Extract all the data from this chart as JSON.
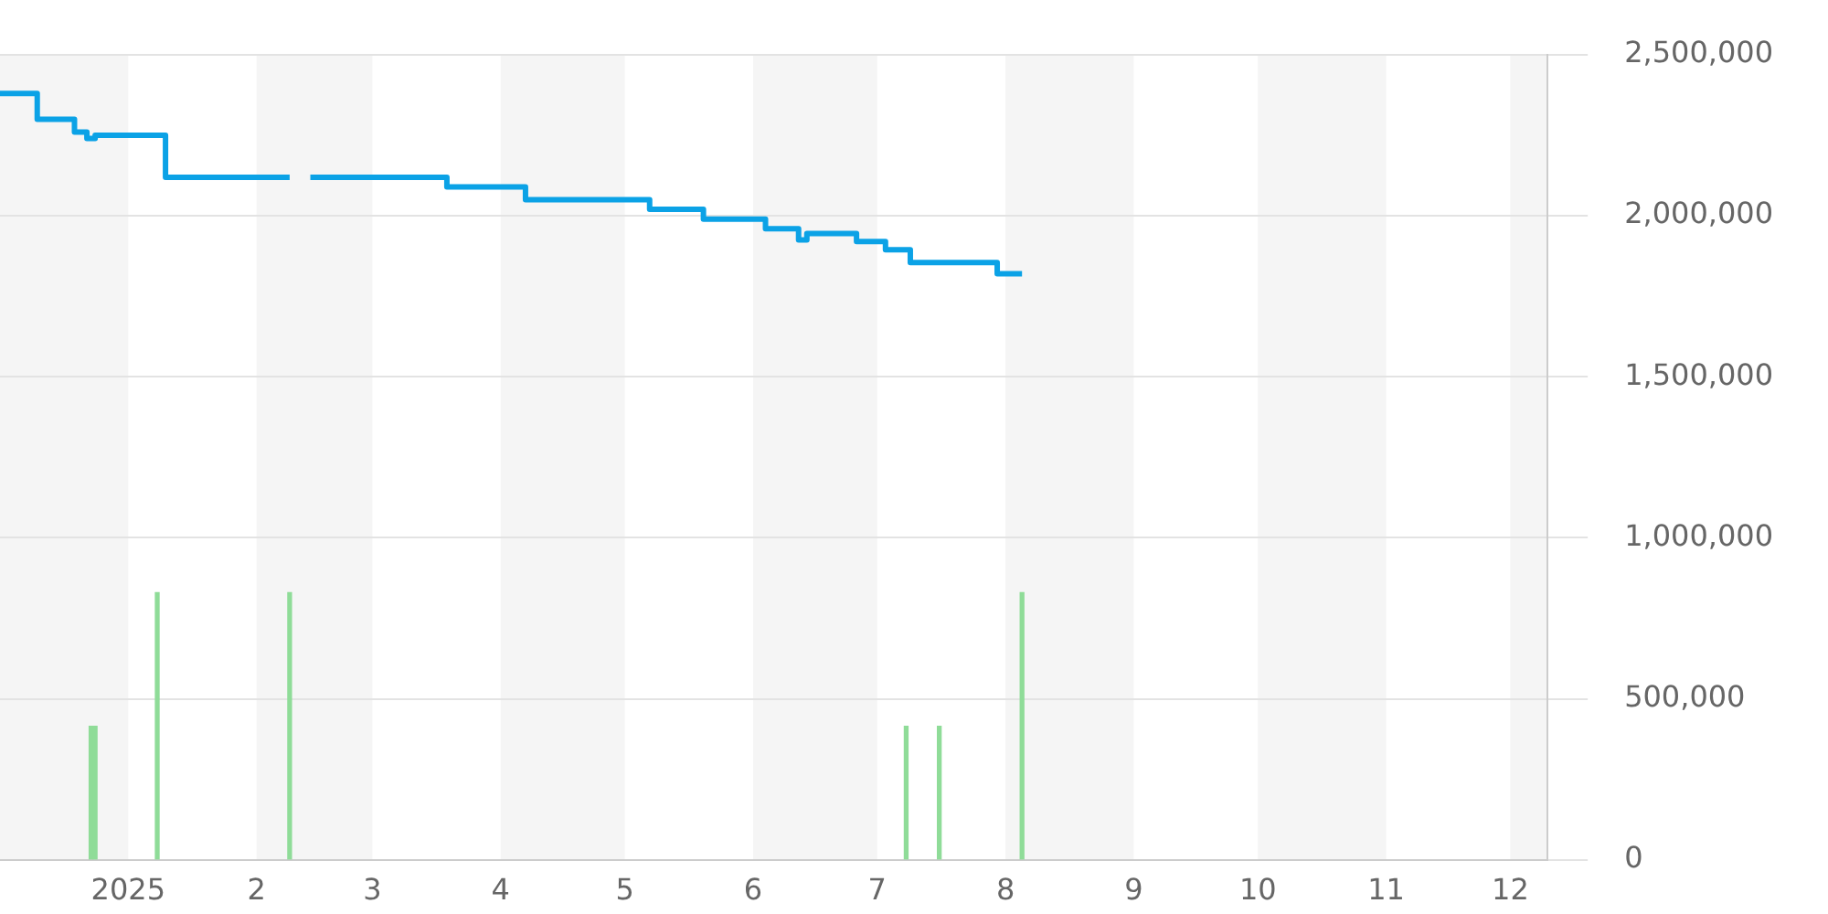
{
  "chart_data": {
    "type": "step",
    "xlim": [
      "2024-12-01",
      "2025-12-10"
    ],
    "xticks": [
      {
        "value": "2025-01-01",
        "label": "2025"
      },
      {
        "value": "2025-02-01",
        "label": "2"
      },
      {
        "value": "2025-03-01",
        "label": "3"
      },
      {
        "value": "2025-04-01",
        "label": "4"
      },
      {
        "value": "2025-05-01",
        "label": "5"
      },
      {
        "value": "2025-06-01",
        "label": "6"
      },
      {
        "value": "2025-07-01",
        "label": "7"
      },
      {
        "value": "2025-08-01",
        "label": "8"
      },
      {
        "value": "2025-09-01",
        "label": "9"
      },
      {
        "value": "2025-10-01",
        "label": "10"
      },
      {
        "value": "2025-11-01",
        "label": "11"
      },
      {
        "value": "2025-12-01",
        "label": "12"
      }
    ],
    "ylim": [
      0,
      2500000
    ],
    "yticks": [
      {
        "value": 0,
        "label": "0"
      },
      {
        "value": 500000,
        "label": "500,000"
      },
      {
        "value": 1000000,
        "label": "1,000,000"
      },
      {
        "value": 1500000,
        "label": "1,500,000"
      },
      {
        "value": 2000000,
        "label": "2,000,000"
      },
      {
        "value": 2500000,
        "label": "2,500,000"
      }
    ],
    "grid": "y",
    "legend": false,
    "bands": [
      {
        "axis": "x",
        "from": "2024-12-01",
        "to": "2025-01-01",
        "color": "#f5f5f5"
      },
      {
        "axis": "x",
        "from": "2025-02-01",
        "to": "2025-03-01",
        "color": "#f5f5f5"
      },
      {
        "axis": "x",
        "from": "2025-04-01",
        "to": "2025-05-01",
        "color": "#f5f5f5"
      },
      {
        "axis": "x",
        "from": "2025-06-01",
        "to": "2025-07-01",
        "color": "#f5f5f5"
      },
      {
        "axis": "x",
        "from": "2025-08-01",
        "to": "2025-09-01",
        "color": "#f5f5f5"
      },
      {
        "axis": "x",
        "from": "2025-10-01",
        "to": "2025-11-01",
        "color": "#f5f5f5"
      },
      {
        "axis": "x",
        "from": "2025-12-01",
        "to": "2025-12-10",
        "color": "#f5f5f5"
      }
    ],
    "series": [
      {
        "color": "#0ba2e6",
        "x": [
          "2024-12-01",
          "2024-12-10",
          "2024-12-19",
          "2024-12-22",
          "2024-12-24",
          "2025-01-10",
          "2025-02-09",
          "2025-02-11",
          "2025-02-14",
          "2025-03-19",
          "2025-04-07",
          "2025-05-07",
          "2025-05-20",
          "2025-06-04",
          "2025-06-12",
          "2025-06-14",
          "2025-06-26",
          "2025-07-03",
          "2025-07-09",
          "2025-07-30",
          "2025-08-05"
        ],
        "values": [
          2380000,
          2300000,
          2260000,
          2240000,
          2250000,
          2120000,
          2120000,
          null,
          2120000,
          2090000,
          2050000,
          2020000,
          1990000,
          1960000,
          1925000,
          1945000,
          1920000,
          1895000,
          1855000,
          1820000,
          1820000
        ]
      },
      {
        "type": "bar",
        "color": "#8fdc98",
        "x": [
          "2024-12-23",
          "2024-12-24",
          "2025-01-08",
          "2025-02-09",
          "2025-07-08",
          "2025-07-16",
          "2025-08-05"
        ],
        "values": [
          415000,
          415000,
          830000,
          830000,
          415000,
          415000,
          830000
        ]
      }
    ]
  }
}
